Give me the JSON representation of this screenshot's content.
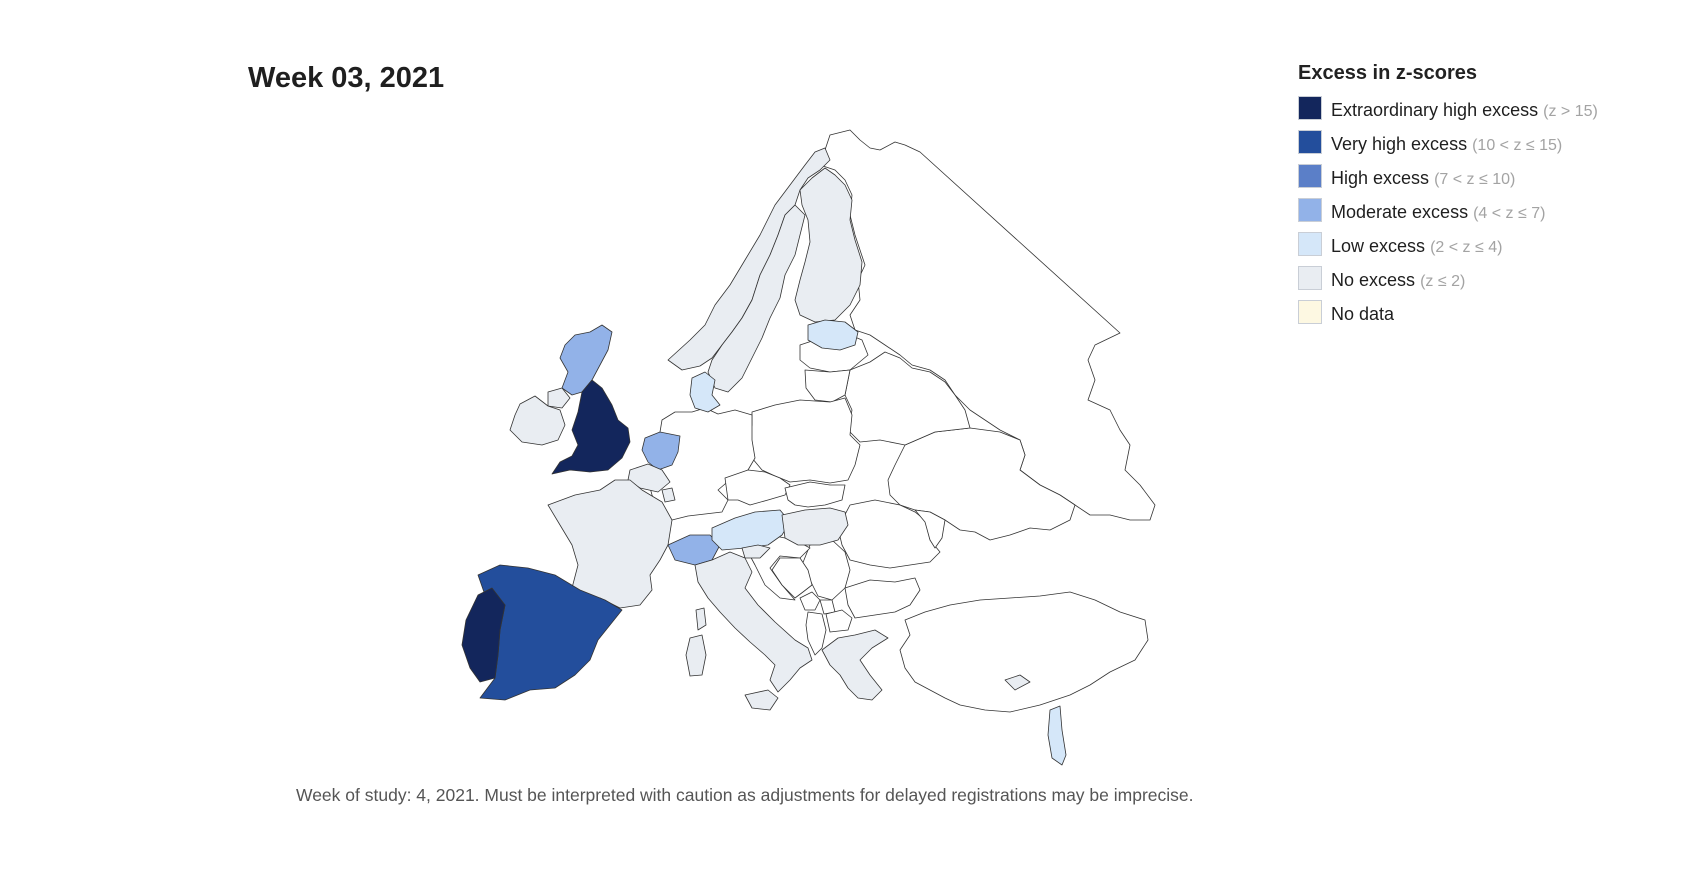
{
  "title": "Week 03, 2021",
  "legend": {
    "title": "Excess in z-scores",
    "items": [
      {
        "label": "Extraordinary high excess",
        "range": "(z > 15)",
        "color": "#13265c"
      },
      {
        "label": "Very high excess",
        "range": "(10 < z ≤ 15)",
        "color": "#234e9c"
      },
      {
        "label": "High excess",
        "range": "(7 < z ≤ 10)",
        "color": "#5b7fc8"
      },
      {
        "label": "Moderate excess",
        "range": "(4 < z ≤ 7)",
        "color": "#92b2e8"
      },
      {
        "label": "Low excess",
        "range": "(2 < z ≤ 4)",
        "color": "#d5e7f9"
      },
      {
        "label": "No excess",
        "range": "(z ≤ 2)",
        "color": "#e9edf2"
      },
      {
        "label": "No data",
        "range": "",
        "color": "#fdf8e2"
      }
    ]
  },
  "footnote": "Week of study: 4, 2021. Must be interpreted with caution as adjustments for delayed registrations may be imprecise.",
  "map": {
    "regions": [
      {
        "name": "england",
        "category": 0
      },
      {
        "name": "portugal",
        "category": 0
      },
      {
        "name": "spain",
        "category": 1
      },
      {
        "name": "scotland",
        "category": 3
      },
      {
        "name": "netherlands",
        "category": 3
      },
      {
        "name": "switzerland",
        "category": 3
      },
      {
        "name": "austria",
        "category": 4
      },
      {
        "name": "denmark",
        "category": 4
      },
      {
        "name": "estonia",
        "category": 4
      },
      {
        "name": "israel",
        "category": 4
      },
      {
        "name": "france",
        "category": 5
      },
      {
        "name": "italy",
        "category": 5
      },
      {
        "name": "norway",
        "category": 5
      },
      {
        "name": "sweden",
        "category": 5
      },
      {
        "name": "finland",
        "category": 5
      },
      {
        "name": "belgium",
        "category": 5
      },
      {
        "name": "luxembourg",
        "category": 5
      },
      {
        "name": "northern-ireland",
        "category": 5
      },
      {
        "name": "ireland",
        "category": 5
      },
      {
        "name": "hungary",
        "category": 5
      },
      {
        "name": "slovenia",
        "category": 5
      },
      {
        "name": "greece",
        "category": 5
      },
      {
        "name": "cyprus",
        "category": 5
      },
      {
        "name": "sicily",
        "category": 5
      },
      {
        "name": "sardinia",
        "category": 5
      },
      {
        "name": "corsica",
        "category": 5
      },
      {
        "name": "germany",
        "category": -1
      },
      {
        "name": "poland",
        "category": -1
      },
      {
        "name": "czechia",
        "category": -1
      },
      {
        "name": "slovakia",
        "category": -1
      },
      {
        "name": "lithuania",
        "category": -1
      },
      {
        "name": "latvia",
        "category": -1
      },
      {
        "name": "belarus",
        "category": -1
      },
      {
        "name": "ukraine",
        "category": -1
      },
      {
        "name": "russia",
        "category": -1
      },
      {
        "name": "romania",
        "category": -1
      },
      {
        "name": "moldova",
        "category": -1
      },
      {
        "name": "bulgaria",
        "category": -1
      },
      {
        "name": "serbia",
        "category": -1
      },
      {
        "name": "croatia",
        "category": -1
      },
      {
        "name": "bosnia",
        "category": -1
      },
      {
        "name": "montenegro",
        "category": -1
      },
      {
        "name": "albania",
        "category": -1
      },
      {
        "name": "north-macedonia",
        "category": -1
      },
      {
        "name": "kosovo",
        "category": -1
      },
      {
        "name": "turkey",
        "category": -1
      }
    ]
  }
}
